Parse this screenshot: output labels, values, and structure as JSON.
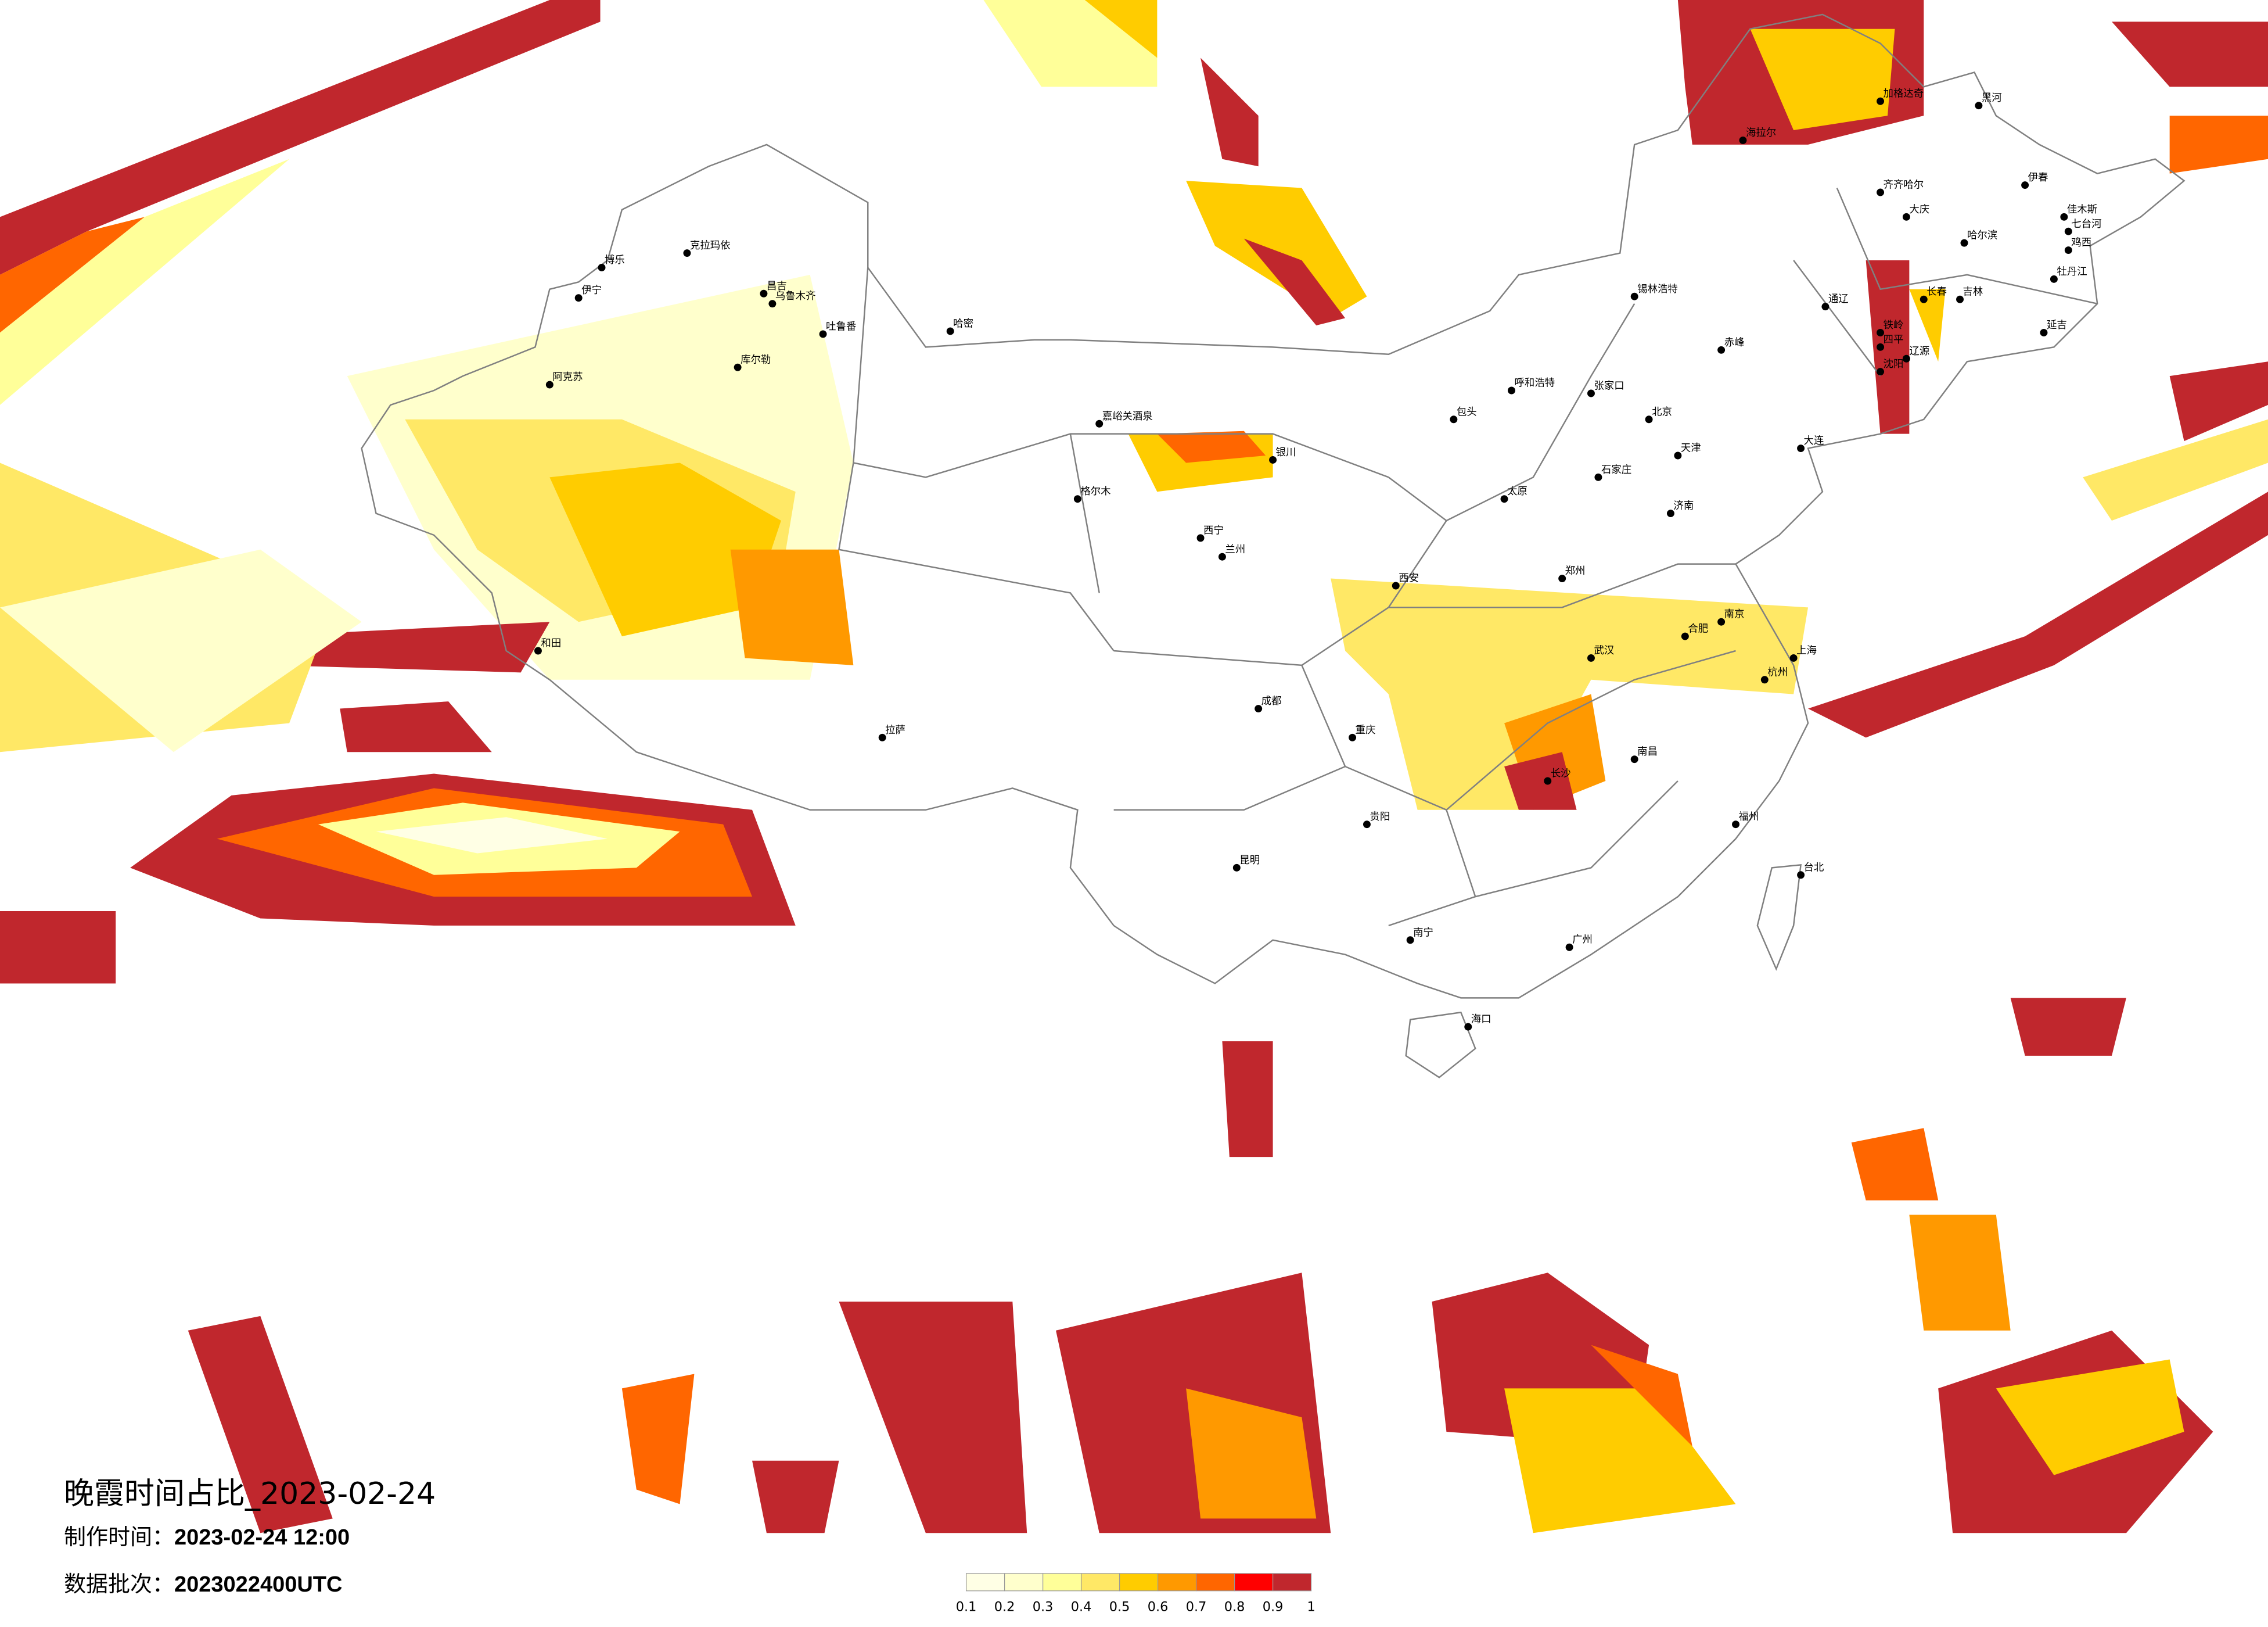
{
  "title": "晚霞时间占比_2023-02-24",
  "made_time": {
    "label": "制作时间：",
    "value": "2023-02-24 12:00"
  },
  "data_batch": {
    "label": "数据批次：",
    "value": "2023022400UTC"
  },
  "legend": {
    "ticks": [
      "0.1",
      "0.2",
      "0.3",
      "0.4",
      "0.5",
      "0.6",
      "0.7",
      "0.8",
      "0.9",
      "1"
    ],
    "colors": [
      "#FFFFE5",
      "#FFFFCC",
      "#FFFF99",
      "#FFE866",
      "#FFCC00",
      "#FF9900",
      "#FF6600",
      "#FF0000",
      "#C0272D"
    ]
  },
  "colors": {
    "border": "#808080",
    "city_dot": "#000000",
    "background": "#FFFFFF"
  },
  "cities": [
    "克拉玛依",
    "博乐",
    "伊宁",
    "昌吉",
    "乌鲁木齐",
    "吐鲁番",
    "库尔勒",
    "阿克苏",
    "和田",
    "哈密",
    "嘉峪关酒泉",
    "格尔木",
    "西宁",
    "兰州",
    "银川",
    "呼和浩特",
    "包头",
    "锡林浩特",
    "北京",
    "天津",
    "石家庄",
    "太原",
    "济南",
    "郑州",
    "西安",
    "成都",
    "重庆",
    "武汉",
    "合肥",
    "南京",
    "上海",
    "杭州",
    "长沙",
    "南昌",
    "福州",
    "广州",
    "南宁",
    "贵阳",
    "昆明",
    "拉萨",
    "海口",
    "台北",
    "哈尔滨",
    "长春",
    "吉林",
    "沈阳",
    "大连",
    "齐齐哈尔",
    "大庆",
    "黑河",
    "海拉尔",
    "加格达奇",
    "伊春",
    "佳木斯",
    "牡丹江",
    "延吉",
    "张家口",
    "赤峰",
    "通辽",
    "四平",
    "辽源",
    "铁岭",
    "鸡西",
    "七台河"
  ]
}
